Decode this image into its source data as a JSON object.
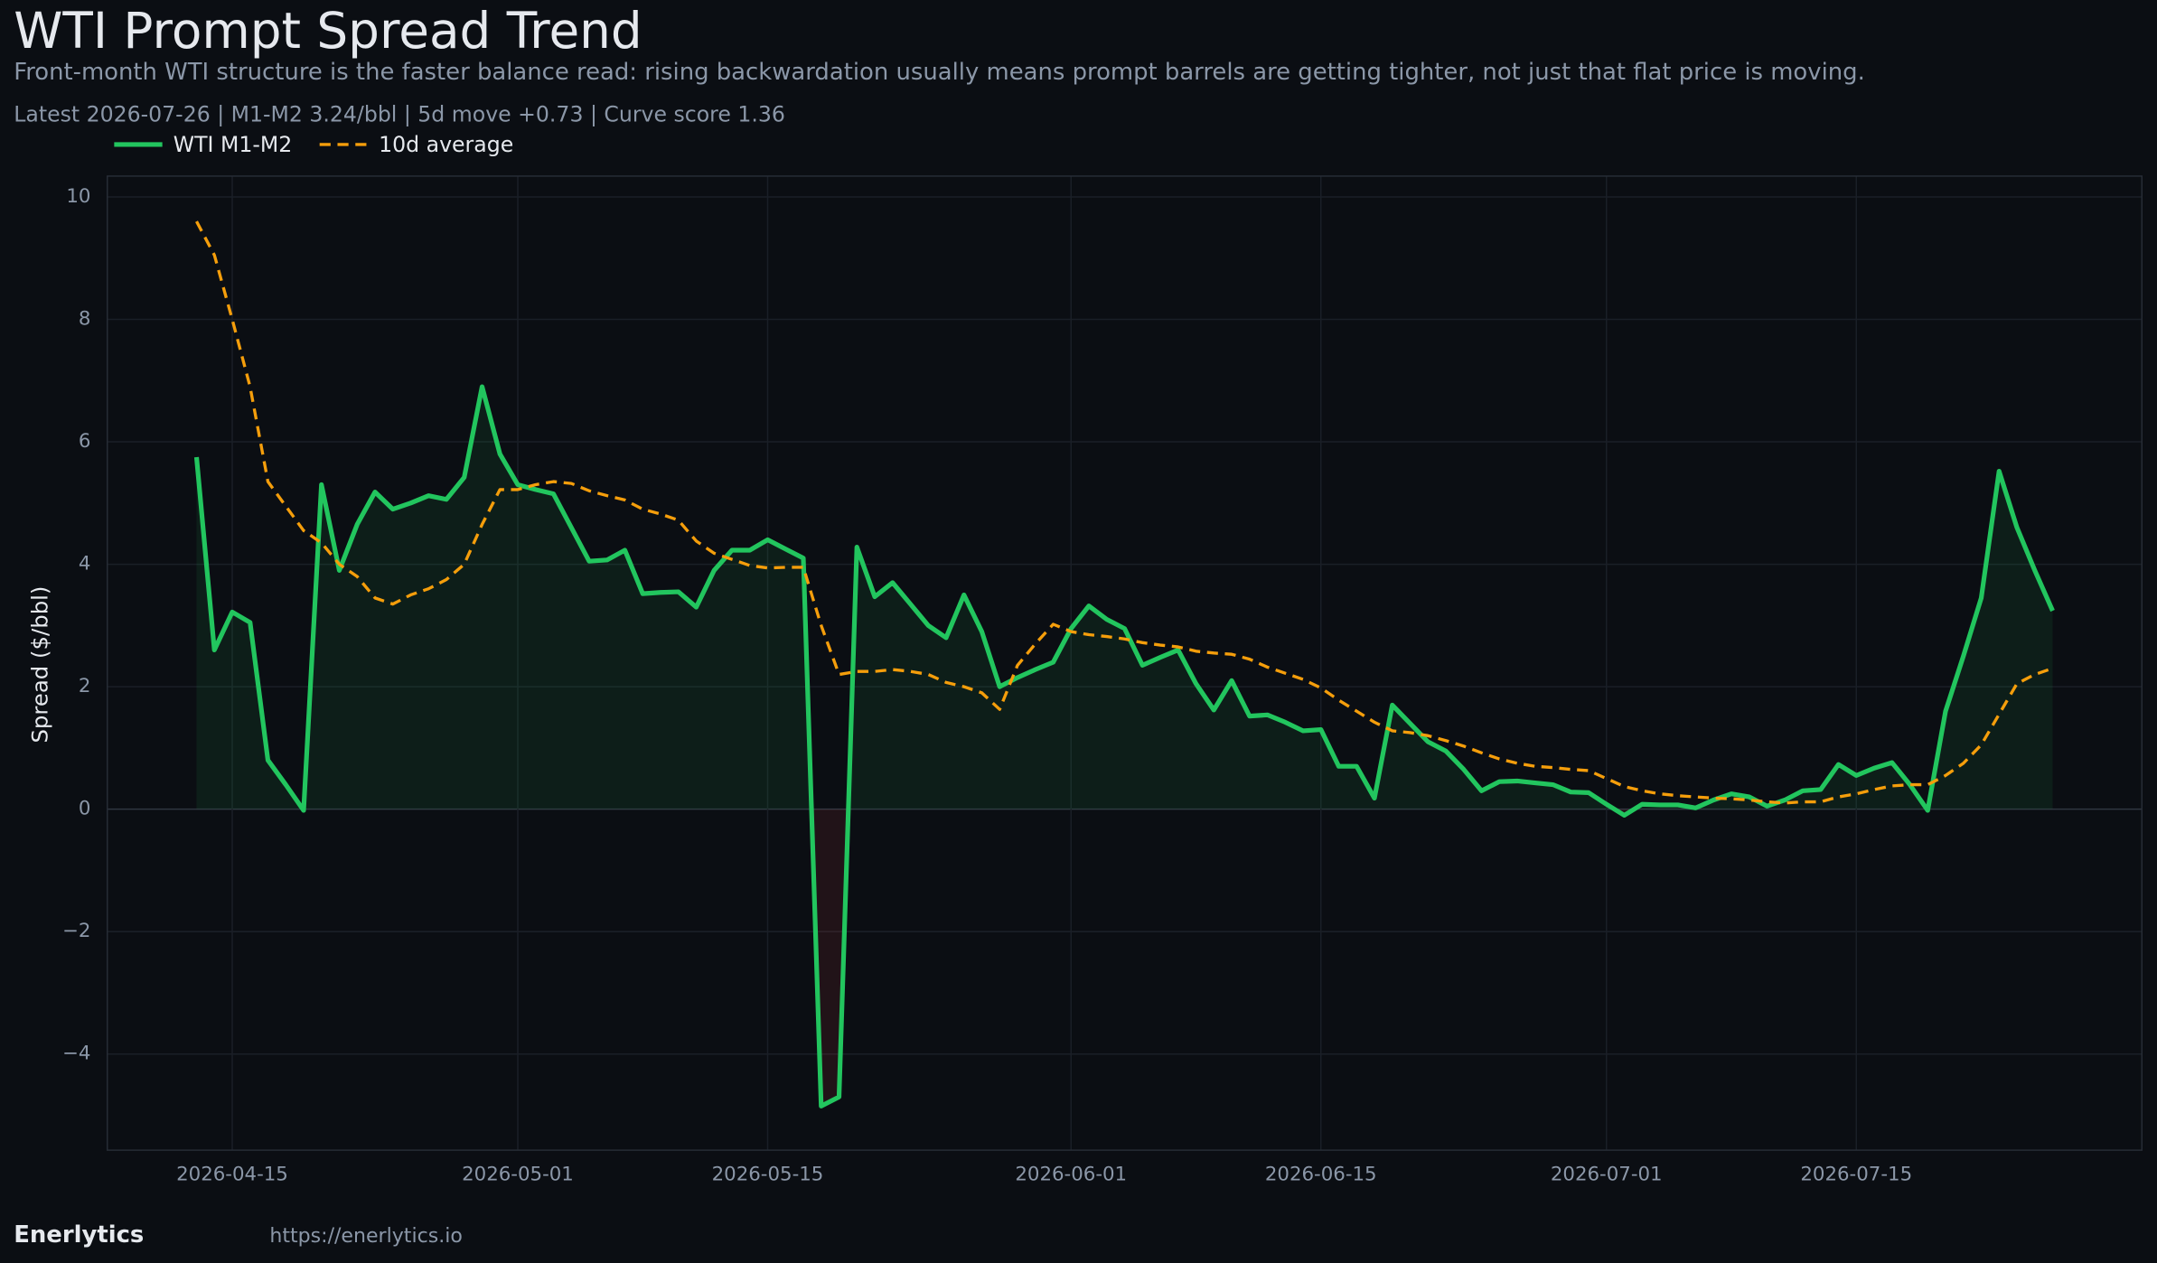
{
  "chart_data": {
    "type": "line",
    "title": "WTI Prompt Spread Trend",
    "subtitle": "Front-month WTI structure is the faster balance read: rising backwardation usually means prompt barrels are getting tighter, not just that flat price is moving.",
    "stats_line": "Latest 2026-07-26  |  M1-M2 3.24/bbl  |  5d move +0.73  |  Curve score 1.36",
    "y_label": "Spread ($/bbl)",
    "footer_brand": "Enerlytics",
    "footer_url": "https://enerlytics.io",
    "legend": "top-left",
    "grid": true,
    "x": [
      "2026-04-13",
      "2026-04-14",
      "2026-04-15",
      "2026-04-16",
      "2026-04-17",
      "2026-04-18",
      "2026-04-19",
      "2026-04-20",
      "2026-04-21",
      "2026-04-22",
      "2026-04-23",
      "2026-04-24",
      "2026-04-25",
      "2026-04-26",
      "2026-04-27",
      "2026-04-28",
      "2026-04-29",
      "2026-04-30",
      "2026-05-01",
      "2026-05-02",
      "2026-05-03",
      "2026-05-04",
      "2026-05-05",
      "2026-05-06",
      "2026-05-07",
      "2026-05-08",
      "2026-05-09",
      "2026-05-10",
      "2026-05-11",
      "2026-05-12",
      "2026-05-13",
      "2026-05-14",
      "2026-05-15",
      "2026-05-16",
      "2026-05-17",
      "2026-05-18",
      "2026-05-19",
      "2026-05-20",
      "2026-05-21",
      "2026-05-22",
      "2026-05-23",
      "2026-05-24",
      "2026-05-25",
      "2026-05-26",
      "2026-05-27",
      "2026-05-28",
      "2026-05-29",
      "2026-05-30",
      "2026-05-31",
      "2026-06-01",
      "2026-06-02",
      "2026-06-03",
      "2026-06-04",
      "2026-06-05",
      "2026-06-06",
      "2026-06-07",
      "2026-06-08",
      "2026-06-09",
      "2026-06-10",
      "2026-06-11",
      "2026-06-12",
      "2026-06-13",
      "2026-06-14",
      "2026-06-15",
      "2026-06-16",
      "2026-06-17",
      "2026-06-18",
      "2026-06-19",
      "2026-06-20",
      "2026-06-21",
      "2026-06-22",
      "2026-06-23",
      "2026-06-24",
      "2026-06-25",
      "2026-06-26",
      "2026-06-27",
      "2026-06-28",
      "2026-06-29",
      "2026-06-30",
      "2026-07-01",
      "2026-07-02",
      "2026-07-03",
      "2026-07-04",
      "2026-07-05",
      "2026-07-06",
      "2026-07-07",
      "2026-07-08",
      "2026-07-09",
      "2026-07-10",
      "2026-07-11",
      "2026-07-12",
      "2026-07-13",
      "2026-07-14",
      "2026-07-15",
      "2026-07-16",
      "2026-07-17",
      "2026-07-18",
      "2026-07-19",
      "2026-07-20",
      "2026-07-21",
      "2026-07-22",
      "2026-07-23",
      "2026-07-24",
      "2026-07-25",
      "2026-07-26"
    ],
    "series": [
      {
        "name": "WTI M1-M2",
        "color": "#22c55e",
        "style": "solid",
        "fill": true,
        "values": [
          5.75,
          2.6,
          3.22,
          3.05,
          0.8,
          0.4,
          -0.02,
          5.3,
          3.9,
          4.65,
          5.18,
          4.9,
          5.0,
          5.12,
          5.06,
          5.42,
          6.9,
          5.8,
          5.3,
          5.22,
          5.15,
          4.6,
          4.05,
          4.07,
          4.23,
          3.52,
          3.54,
          3.55,
          3.3,
          3.9,
          4.23,
          4.23,
          4.4,
          4.25,
          4.1,
          -4.85,
          -4.7,
          4.28,
          3.47,
          3.7,
          3.35,
          3.0,
          2.8,
          3.5,
          2.9,
          2.0,
          2.15,
          2.28,
          2.4,
          2.95,
          3.32,
          3.1,
          2.95,
          2.35,
          2.48,
          2.6,
          2.05,
          1.62,
          2.1,
          1.52,
          1.54,
          1.42,
          1.28,
          1.3,
          0.7,
          0.7,
          0.18,
          1.7,
          1.4,
          1.1,
          0.95,
          0.65,
          0.3,
          0.45,
          0.46,
          0.43,
          0.4,
          0.28,
          0.27,
          0.08,
          -0.1,
          0.08,
          0.07,
          0.07,
          0.02,
          0.15,
          0.25,
          0.2,
          0.05,
          0.15,
          0.3,
          0.32,
          0.73,
          0.55,
          0.67,
          0.76,
          0.4,
          -0.02,
          1.6,
          2.5,
          3.45,
          5.52,
          4.6,
          3.9,
          3.24
        ]
      },
      {
        "name": "10d average",
        "color": "#f59e0b",
        "style": "dashed",
        "fill": false,
        "values": [
          9.6,
          9.05,
          8.0,
          6.9,
          5.35,
          4.95,
          4.55,
          4.35,
          4.0,
          3.8,
          3.45,
          3.35,
          3.5,
          3.6,
          3.75,
          4.0,
          4.65,
          5.22,
          5.22,
          5.3,
          5.35,
          5.32,
          5.2,
          5.12,
          5.05,
          4.9,
          4.82,
          4.72,
          4.38,
          4.18,
          4.08,
          3.98,
          3.94,
          3.95,
          3.95,
          3.0,
          2.2,
          2.25,
          2.25,
          2.28,
          2.25,
          2.2,
          2.07,
          2.0,
          1.9,
          1.63,
          2.35,
          2.7,
          3.02,
          2.9,
          2.85,
          2.82,
          2.78,
          2.72,
          2.68,
          2.65,
          2.58,
          2.55,
          2.53,
          2.45,
          2.32,
          2.22,
          2.12,
          1.98,
          1.78,
          1.6,
          1.42,
          1.28,
          1.25,
          1.2,
          1.12,
          1.03,
          0.92,
          0.82,
          0.75,
          0.7,
          0.68,
          0.65,
          0.63,
          0.5,
          0.37,
          0.3,
          0.25,
          0.22,
          0.2,
          0.18,
          0.17,
          0.15,
          0.12,
          0.1,
          0.12,
          0.12,
          0.2,
          0.25,
          0.32,
          0.38,
          0.4,
          0.4,
          0.55,
          0.75,
          1.05,
          1.55,
          2.05,
          2.2,
          2.3
        ]
      }
    ],
    "xlim": [
      "2026-04-08",
      "2026-07-31"
    ],
    "xticks": [
      "2026-04-15",
      "2026-05-01",
      "2026-05-15",
      "2026-06-01",
      "2026-06-15",
      "2026-07-01",
      "2026-07-15"
    ],
    "ylim": [
      -5.57,
      10.34
    ],
    "yticks": [
      {
        "value": -4,
        "label": "−4"
      },
      {
        "value": -2,
        "label": "−2"
      },
      0,
      2,
      4,
      6,
      8,
      10
    ]
  }
}
